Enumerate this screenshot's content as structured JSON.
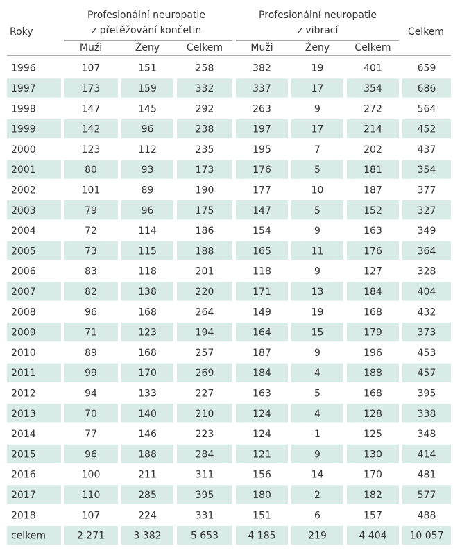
{
  "table": {
    "header": {
      "year": "Roky",
      "group1": [
        "Profesionální neuropatie",
        "z přetěžování končetin"
      ],
      "group2": [
        "Profesionální neuropatie",
        "z vibrací"
      ],
      "total": "Celkem",
      "sub": [
        "Muži",
        "Ženy",
        "Celkem",
        "Muži",
        "Ženy",
        "Celkem"
      ]
    },
    "rows": [
      [
        1996,
        107,
        151,
        258,
        382,
        19,
        401,
        659
      ],
      [
        1997,
        173,
        159,
        332,
        337,
        17,
        354,
        686
      ],
      [
        1998,
        147,
        145,
        292,
        263,
        9,
        272,
        564
      ],
      [
        1999,
        142,
        96,
        238,
        197,
        17,
        214,
        452
      ],
      [
        2000,
        123,
        112,
        235,
        195,
        7,
        202,
        437
      ],
      [
        2001,
        80,
        93,
        173,
        176,
        5,
        181,
        354
      ],
      [
        2002,
        101,
        89,
        190,
        177,
        10,
        187,
        377
      ],
      [
        2003,
        79,
        96,
        175,
        147,
        5,
        152,
        327
      ],
      [
        2004,
        72,
        114,
        186,
        154,
        9,
        163,
        349
      ],
      [
        2005,
        73,
        115,
        188,
        165,
        11,
        176,
        364
      ],
      [
        2006,
        83,
        118,
        201,
        118,
        9,
        127,
        328
      ],
      [
        2007,
        82,
        138,
        220,
        171,
        13,
        184,
        404
      ],
      [
        2008,
        96,
        168,
        264,
        149,
        19,
        168,
        432
      ],
      [
        2009,
        71,
        123,
        194,
        164,
        15,
        179,
        373
      ],
      [
        2010,
        89,
        168,
        257,
        187,
        9,
        196,
        453
      ],
      [
        2011,
        99,
        170,
        269,
        184,
        4,
        188,
        457
      ],
      [
        2012,
        94,
        133,
        227,
        163,
        5,
        168,
        395
      ],
      [
        2013,
        70,
        140,
        210,
        124,
        4,
        128,
        338
      ],
      [
        2014,
        77,
        146,
        223,
        124,
        1,
        125,
        348
      ],
      [
        2015,
        96,
        188,
        284,
        121,
        9,
        130,
        414
      ],
      [
        2016,
        100,
        211,
        311,
        156,
        14,
        170,
        481
      ],
      [
        2017,
        110,
        285,
        395,
        180,
        2,
        182,
        577
      ],
      [
        2018,
        107,
        224,
        331,
        151,
        6,
        157,
        488
      ],
      [
        "celkem",
        "2 271",
        "3 382",
        "5 653",
        "4 185",
        219,
        "4 404",
        "10 057"
      ]
    ]
  }
}
